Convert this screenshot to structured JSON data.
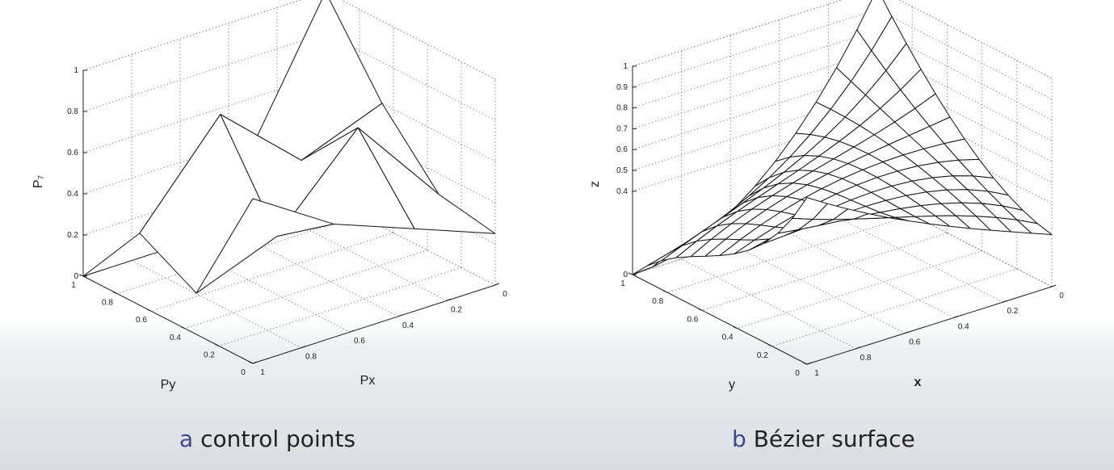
{
  "chart_data": [
    {
      "type": "surface",
      "panel": "a",
      "caption_letter": "a",
      "caption_text": "control points",
      "xlabel": "Px",
      "ylabel": "Py",
      "zlabel": "P₇",
      "x_ticks": [
        "0",
        "0.2",
        "0.4",
        "0.6",
        "0.8",
        "1"
      ],
      "y_ticks": [
        "0",
        "0.2",
        "0.4",
        "0.6",
        "0.8",
        "1"
      ],
      "z_ticks": [
        "0",
        "0.2",
        "0.4",
        "0.6",
        "0.8",
        "1"
      ],
      "xlim": [
        0,
        1
      ],
      "ylim": [
        0,
        1
      ],
      "zlim": [
        0,
        1
      ],
      "grid": true,
      "x": [
        0,
        0.333,
        0.667,
        1
      ],
      "y": [
        0,
        0.333,
        0.667,
        1
      ],
      "z": [
        [
          0.25,
          0.3,
          0.6,
          1.0
        ],
        [
          0.4,
          0.75,
          0.45,
          0.3
        ],
        [
          0.55,
          0.35,
          0.8,
          0.0
        ],
        [
          0.8,
          0.2,
          0.35,
          0.0
        ]
      ]
    },
    {
      "type": "surface",
      "panel": "b",
      "caption_letter": "b",
      "caption_text": "Bézier surface",
      "xlabel": "x",
      "ylabel": "y",
      "zlabel": "z",
      "x_ticks": [
        "0",
        "0.2",
        "0.4",
        "0.6",
        "0.8",
        "1"
      ],
      "y_ticks": [
        "0",
        "0.2",
        "0.4",
        "0.6",
        "0.8",
        "1"
      ],
      "z_ticks": [
        "0",
        "0.4",
        "0.5",
        "0.6",
        "0.7",
        "0.8",
        "0.9",
        "1"
      ],
      "xlim": [
        0,
        1
      ],
      "ylim": [
        0,
        1
      ],
      "zlim": [
        0,
        1
      ],
      "grid": true,
      "grid_resolution": 12,
      "description_of_control_net": "same control points as panel a"
    }
  ]
}
